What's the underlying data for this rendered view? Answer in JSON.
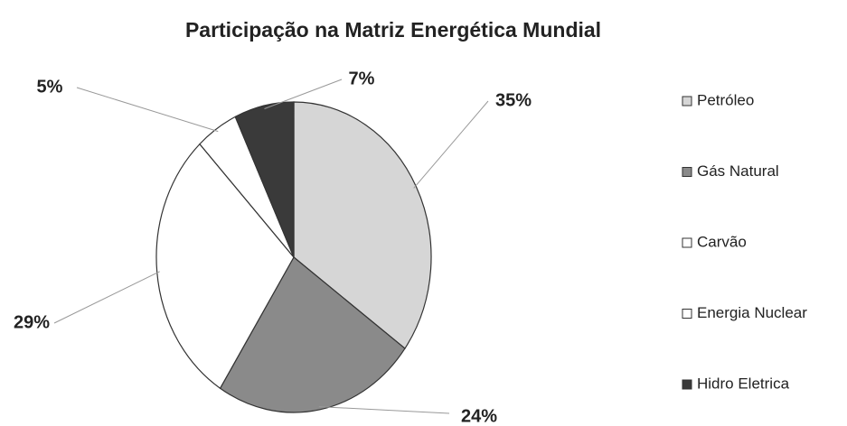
{
  "chart_data": {
    "type": "pie",
    "title": "Participação na Matriz Energética Mundial",
    "categories": [
      "Petróleo",
      "Gás Natural",
      "Carvão",
      "Energia Nuclear",
      "Hidro Eletrica"
    ],
    "values": [
      35,
      24,
      29,
      5,
      7
    ],
    "value_labels": [
      "35%",
      "24%",
      "29%",
      "5%",
      "7%"
    ],
    "colors": [
      "#d6d6d6",
      "#8a8a8a",
      "#ffffff",
      "#ffffff",
      "#3a3a3a"
    ],
    "legend": "right"
  }
}
